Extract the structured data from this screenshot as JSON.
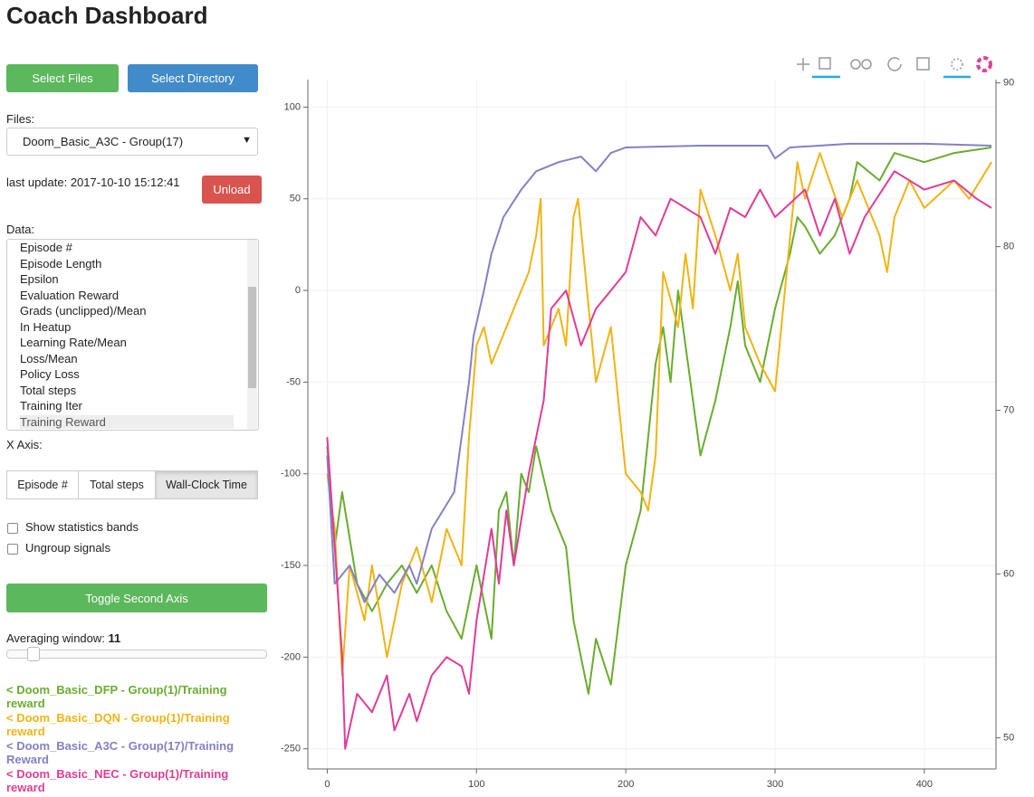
{
  "header": {
    "title": "Coach Dashboard"
  },
  "controls": {
    "select_files": "Select Files",
    "select_directory": "Select Directory",
    "files_label": "Files:",
    "files_value": "Doom_Basic_A3C - Group(17)",
    "last_update": "last update: 2017-10-10 15:12:41",
    "unload": "Unload",
    "data_label": "Data:",
    "data_items": [
      "Episode #",
      "Episode Length",
      "Epsilon",
      "Evaluation Reward",
      "Grads (unclipped)/Mean",
      "In Heatup",
      "Learning Rate/Mean",
      "Loss/Mean",
      "Policy Loss",
      "Total steps",
      "Training Iter",
      "Training Reward"
    ],
    "x_axis_label": "X Axis:",
    "x_axis_options": [
      "Episode #",
      "Total steps",
      "Wall-Clock Time"
    ],
    "show_bands": "Show statistics bands",
    "ungroup": "Ungroup signals",
    "toggle_axis": "Toggle Second Axis",
    "averaging_label": "Averaging window:",
    "averaging_value": "11"
  },
  "chart_data": {
    "type": "line",
    "grid": true,
    "xlim": [
      -13,
      448
    ],
    "xticks": [
      0,
      100,
      200,
      300,
      400
    ],
    "ylim": [
      -261,
      115
    ],
    "yticks": [
      -250,
      -200,
      -150,
      -100,
      -50,
      0,
      50,
      100
    ],
    "y2lim": [
      48.1,
      90.2
    ],
    "y2ticks": [
      50,
      60,
      70,
      80,
      90
    ],
    "series": [
      {
        "name": "< Doom_Basic_DFP - Group(1)/Training reward",
        "color": "#6aac2e",
        "x": [
          0,
          5,
          10,
          20,
          30,
          40,
          50,
          60,
          70,
          80,
          90,
          100,
          110,
          115,
          120,
          125,
          130,
          135,
          140,
          150,
          160,
          165,
          175,
          180,
          190,
          200,
          210,
          215,
          220,
          225,
          230,
          235,
          240,
          250,
          260,
          270,
          275,
          280,
          290,
          300,
          310,
          315,
          320,
          330,
          340,
          350,
          355,
          370,
          380,
          400,
          420,
          445
        ],
        "values": [
          -85,
          -140,
          -110,
          -160,
          -175,
          -160,
          -150,
          -165,
          -150,
          -175,
          -190,
          -150,
          -190,
          -120,
          -110,
          -150,
          -100,
          -110,
          -85,
          -120,
          -140,
          -180,
          -220,
          -190,
          -215,
          -150,
          -120,
          -80,
          -40,
          -20,
          -50,
          0,
          -30,
          -90,
          -60,
          -20,
          5,
          -30,
          -50,
          -10,
          20,
          40,
          35,
          20,
          30,
          50,
          70,
          60,
          75,
          70,
          75,
          78
        ]
      },
      {
        "name": "< Doom_Basic_DQN - Group(1)/Training reward",
        "color": "#f0b414",
        "x": [
          0,
          5,
          10,
          15,
          25,
          30,
          40,
          50,
          60,
          70,
          80,
          90,
          95,
          100,
          105,
          110,
          120,
          125,
          130,
          135,
          140,
          143,
          145,
          155,
          160,
          165,
          168,
          180,
          190,
          195,
          200,
          210,
          215,
          220,
          225,
          235,
          240,
          245,
          250,
          260,
          270,
          275,
          280,
          290,
          300,
          315,
          320,
          330,
          345,
          355,
          370,
          375,
          380,
          390,
          400,
          420,
          430,
          445
        ],
        "values": [
          -100,
          -130,
          -210,
          -150,
          -180,
          -150,
          -200,
          -160,
          -140,
          -170,
          -130,
          -150,
          -80,
          -30,
          -20,
          -40,
          -20,
          -10,
          0,
          10,
          30,
          50,
          -30,
          -10,
          -30,
          40,
          50,
          -50,
          -20,
          -60,
          -100,
          -110,
          -120,
          -90,
          10,
          -20,
          20,
          -10,
          55,
          30,
          0,
          20,
          -20,
          -40,
          -55,
          70,
          50,
          75,
          40,
          60,
          30,
          10,
          40,
          60,
          45,
          60,
          50,
          70
        ]
      },
      {
        "name": "< Doom_Basic_A3C - Group(17)/Training Reward",
        "color": "#8480c4",
        "x": [
          0,
          5,
          15,
          25,
          35,
          45,
          55,
          60,
          70,
          85,
          95,
          98,
          105,
          110,
          118,
          130,
          140,
          155,
          170,
          180,
          190,
          200,
          250,
          295,
          300,
          310,
          350,
          400,
          445
        ],
        "values": [
          -90,
          -160,
          -150,
          -170,
          -155,
          -165,
          -150,
          -160,
          -130,
          -110,
          -50,
          -25,
          0,
          20,
          40,
          55,
          65,
          70,
          73,
          65,
          75,
          78,
          79,
          79,
          72,
          78,
          80,
          80,
          79
        ]
      },
      {
        "name": "< Doom_Basic_NEC - Group(1)/Training reward",
        "color": "#e03c96",
        "x": [
          0,
          5,
          10,
          12,
          20,
          30,
          40,
          45,
          55,
          60,
          70,
          80,
          90,
          95,
          100,
          110,
          115,
          120,
          125,
          135,
          140,
          145,
          150,
          160,
          170,
          180,
          190,
          200,
          210,
          220,
          230,
          250,
          260,
          270,
          280,
          290,
          300,
          320,
          330,
          340,
          350,
          360,
          380,
          400,
          420,
          435,
          445
        ],
        "values": [
          -80,
          -140,
          -200,
          -250,
          -220,
          -230,
          -210,
          -240,
          -220,
          -235,
          -210,
          -200,
          -205,
          -220,
          -180,
          -130,
          -160,
          -120,
          -150,
          -100,
          -80,
          -60,
          -10,
          0,
          -30,
          -10,
          0,
          10,
          40,
          30,
          50,
          40,
          20,
          45,
          40,
          55,
          40,
          55,
          30,
          50,
          20,
          40,
          65,
          55,
          60,
          50,
          45
        ]
      }
    ]
  }
}
